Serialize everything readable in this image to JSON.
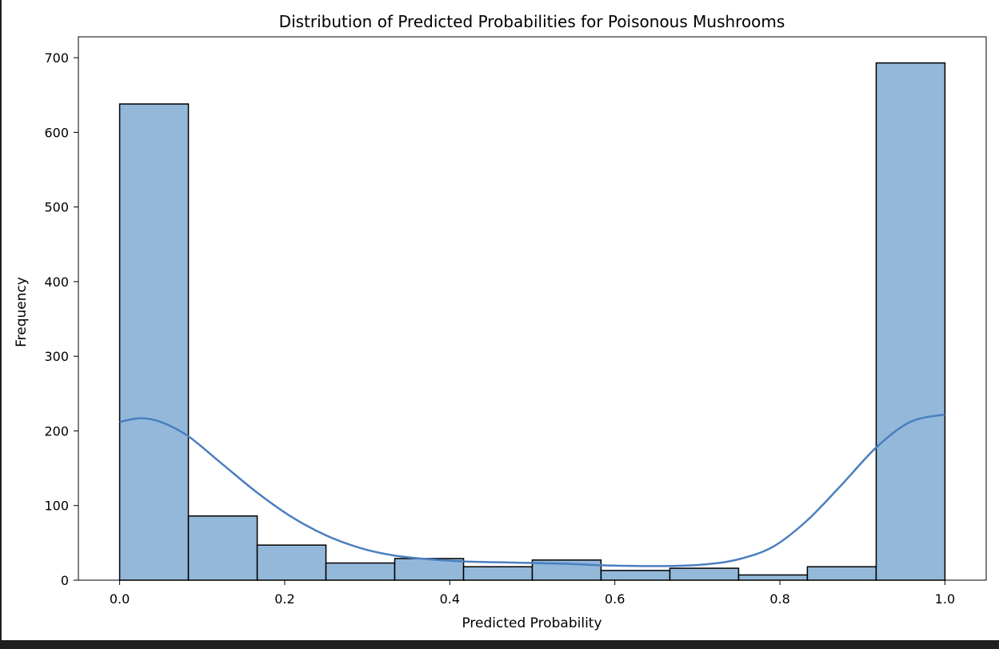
{
  "chart_data": {
    "type": "bar",
    "title": "Distribution of Predicted Probabilities for Poisonous Mushrooms",
    "xlabel": "Predicted Probability",
    "ylabel": "Frequency",
    "xlim": [
      -0.05,
      1.05
    ],
    "ylim": [
      0,
      728
    ],
    "x_ticks": [
      {
        "value": 0.0,
        "label": "0.0"
      },
      {
        "value": 0.2,
        "label": "0.2"
      },
      {
        "value": 0.4,
        "label": "0.4"
      },
      {
        "value": 0.6,
        "label": "0.6"
      },
      {
        "value": 0.8,
        "label": "0.8"
      },
      {
        "value": 1.0,
        "label": "1.0"
      }
    ],
    "y_ticks": [
      {
        "value": 0,
        "label": "0"
      },
      {
        "value": 100,
        "label": "100"
      },
      {
        "value": 200,
        "label": "200"
      },
      {
        "value": 300,
        "label": "300"
      },
      {
        "value": 400,
        "label": "400"
      },
      {
        "value": 500,
        "label": "500"
      },
      {
        "value": 600,
        "label": "600"
      },
      {
        "value": 700,
        "label": "700"
      }
    ],
    "bins": [
      {
        "x0": 0.0,
        "x1": 0.0833,
        "count": 638
      },
      {
        "x0": 0.0833,
        "x1": 0.1667,
        "count": 86
      },
      {
        "x0": 0.1667,
        "x1": 0.25,
        "count": 47
      },
      {
        "x0": 0.25,
        "x1": 0.3333,
        "count": 23
      },
      {
        "x0": 0.3333,
        "x1": 0.4167,
        "count": 29
      },
      {
        "x0": 0.4167,
        "x1": 0.5,
        "count": 18
      },
      {
        "x0": 0.5,
        "x1": 0.5833,
        "count": 27
      },
      {
        "x0": 0.5833,
        "x1": 0.6667,
        "count": 13
      },
      {
        "x0": 0.6667,
        "x1": 0.75,
        "count": 16
      },
      {
        "x0": 0.75,
        "x1": 0.8333,
        "count": 7
      },
      {
        "x0": 0.8333,
        "x1": 0.9167,
        "count": 18
      },
      {
        "x0": 0.9167,
        "x1": 1.0,
        "count": 693
      }
    ],
    "kde": {
      "x": [
        0.0,
        0.025,
        0.05,
        0.083,
        0.125,
        0.167,
        0.208,
        0.25,
        0.292,
        0.333,
        0.375,
        0.417,
        0.458,
        0.5,
        0.542,
        0.583,
        0.625,
        0.667,
        0.708,
        0.75,
        0.792,
        0.833,
        0.875,
        0.917,
        0.958,
        1.0
      ],
      "y": [
        212,
        217,
        212,
        193,
        155,
        117,
        85,
        60,
        43,
        33,
        28,
        25,
        24,
        23,
        22,
        20,
        19,
        19,
        21,
        28,
        45,
        80,
        128,
        178,
        212,
        222
      ]
    },
    "grid": false,
    "colors": {
      "bar_fill": "#94b8da",
      "bar_edge": "#000000",
      "kde_line": "#4a7fbf"
    }
  }
}
